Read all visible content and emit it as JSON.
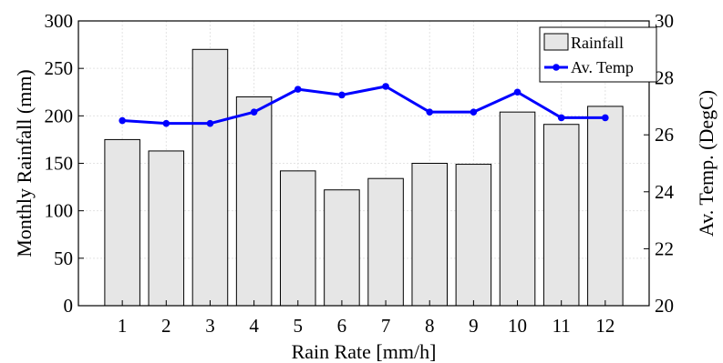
{
  "chart_data": {
    "type": "bar+line",
    "categories": [
      "1",
      "2",
      "3",
      "4",
      "5",
      "6",
      "7",
      "8",
      "9",
      "10",
      "11",
      "12"
    ],
    "xlabel": "Rain Rate [mm/h]",
    "ylabel": "Monthly Rainfall (mm)",
    "ylabel_right": "Av. Temp. (DegC)",
    "ylim": [
      0,
      300
    ],
    "ylim_right": [
      20,
      30
    ],
    "yticks": [
      "0",
      "50",
      "100",
      "150",
      "200",
      "250",
      "300"
    ],
    "yticks_right": [
      "20",
      "22",
      "24",
      "26",
      "28",
      "30"
    ],
    "grid": true,
    "legend_position": "top-right",
    "series": [
      {
        "name": "Rainfall",
        "type": "bar",
        "axis": "left",
        "color": "#e6e6e6",
        "values": [
          175,
          163,
          270,
          220,
          142,
          122,
          134,
          150,
          149,
          204,
          191,
          210
        ]
      },
      {
        "name": "Av. Temp",
        "type": "line",
        "axis": "right",
        "color": "#0000ff",
        "values": [
          26.5,
          26.4,
          26.4,
          26.8,
          27.6,
          27.4,
          27.7,
          26.8,
          26.8,
          27.5,
          26.6,
          26.6
        ]
      }
    ]
  }
}
